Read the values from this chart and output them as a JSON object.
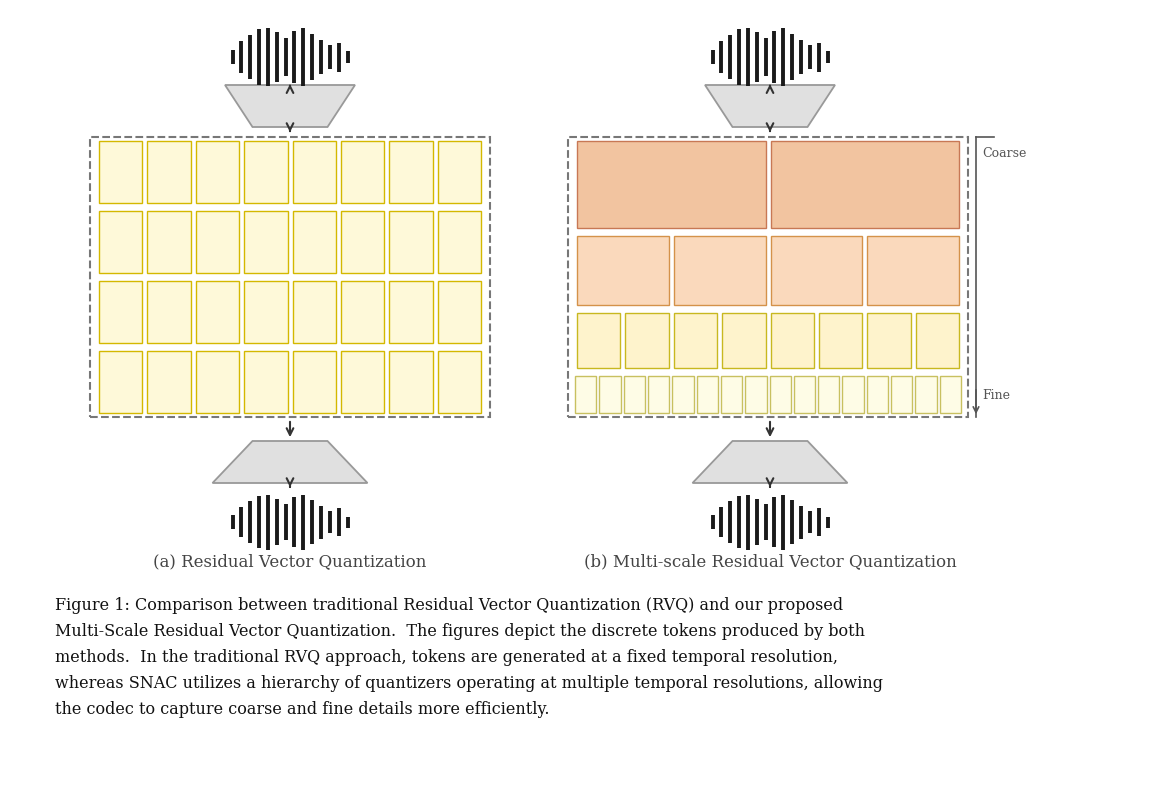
{
  "bg_color": "#ffffff",
  "caption_a": "(a) Residual Vector Quantization",
  "caption_b": "(b) Multi-scale Residual Vector Quantization",
  "figure_caption": "Figure 1: Comparison between traditional Residual Vector Quantization (RVQ) and our proposed\nMulti-Scale Residual Vector Quantization.  The figures depict the discrete tokens produced by both\nmethods.  In the traditional RVQ approach, tokens are generated at a fixed temporal resolution,\nwhereas SNAC utilizes a hierarchy of quantizers operating at multiple temporal resolutions, allowing\nthe codec to capture coarse and fine details more efficiently.",
  "rvq_box_color": "#fef9d9",
  "rvq_box_edge": "#d4b800",
  "snac_row1_fill": "#f2c4a0",
  "snac_row1_edge": "#c87855",
  "snac_row2_fill": "#fad9bc",
  "snac_row2_edge": "#d4924a",
  "snac_row3_fill": "#fef3cc",
  "snac_row3_edge": "#c8b820",
  "snac_row4_fill": "#fefce6",
  "snac_row4_edge": "#c8c060",
  "encoder_fill": "#e0e0e0",
  "encoder_edge": "#999999",
  "decoder_fill": "#e0e0e0",
  "decoder_edge": "#999999",
  "dash_color": "#777777",
  "arrow_color": "#333333",
  "wave_color": "#1a1a1a",
  "label_color": "#444444",
  "coarse_fine_color": "#555555",
  "text_color": "#111111"
}
